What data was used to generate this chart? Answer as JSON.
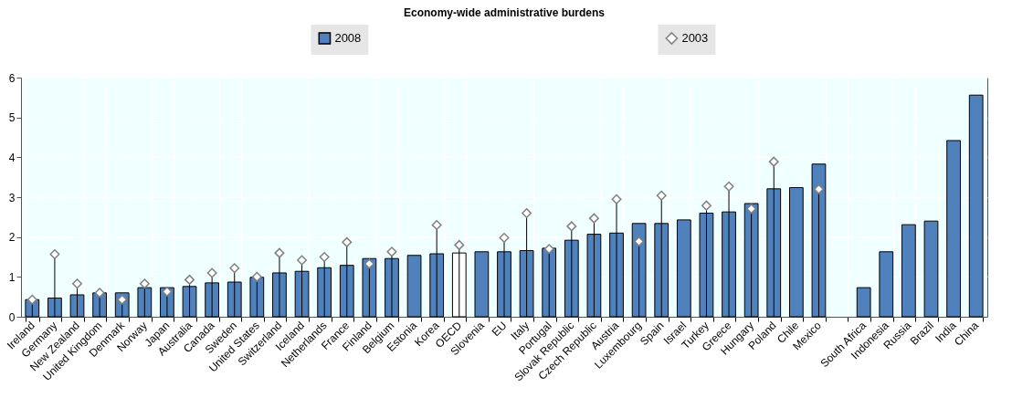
{
  "chart_data": {
    "type": "bar",
    "title": "Economy-wide administrative burdens",
    "categories": [
      "Ireland",
      "Germany",
      "New Zealand",
      "United Kingdom",
      "Denmark",
      "Norway",
      "Japan",
      "Australia",
      "Canada",
      "Sweden",
      "United States",
      "Switzerland",
      "Iceland",
      "Netherlands",
      "France",
      "Finland",
      "Belgium",
      "Estonia",
      "Korea",
      "OECD",
      "Slovenia",
      "EU",
      "Italy",
      "Portugal",
      "Slovak Republic",
      "Czech Republic",
      "Austria",
      "Luxembourg",
      "Spain",
      "Israel",
      "Turkey",
      "Greece",
      "Hungary",
      "Poland",
      "Chile",
      "Mexico",
      null,
      "South Africa",
      "Indonesia",
      "Russia",
      "Brazil",
      "India",
      "China"
    ],
    "series": [
      {
        "name": "2008",
        "color": "#4f81bd",
        "colors": [
          "#4f81bd",
          "#4f81bd",
          "#4f81bd",
          "#4f81bd",
          "#4f81bd",
          "#4f81bd",
          "#4f81bd",
          "#4f81bd",
          "#4f81bd",
          "#4f81bd",
          "#4f81bd",
          "#4f81bd",
          "#4f81bd",
          "#4f81bd",
          "#4f81bd",
          "#4f81bd",
          "#4f81bd",
          "#4f81bd",
          "#4f81bd",
          "#ffffff",
          "#4f81bd",
          "#4f81bd",
          "#4f81bd",
          "#4f81bd",
          "#4f81bd",
          "#4f81bd",
          "#4f81bd",
          "#4f81bd",
          "#4f81bd",
          "#4f81bd",
          "#4f81bd",
          "#4f81bd",
          "#4f81bd",
          "#4f81bd",
          "#4f81bd",
          "#4f81bd",
          "#4f81bd",
          "#4f81bd",
          "#4f81bd",
          "#4f81bd",
          "#4f81bd",
          "#4f81bd",
          "#4f81bd"
        ],
        "values": [
          0.43,
          0.47,
          0.55,
          0.6,
          0.6,
          0.73,
          0.73,
          0.76,
          0.85,
          0.87,
          0.99,
          1.1,
          1.14,
          1.23,
          1.29,
          1.46,
          1.46,
          1.54,
          1.58,
          1.6,
          1.63,
          1.63,
          1.66,
          1.72,
          1.92,
          2.07,
          2.1,
          2.34,
          2.34,
          2.43,
          2.6,
          2.63,
          2.84,
          3.21,
          3.24,
          3.83,
          null,
          0.73,
          1.63,
          2.31,
          2.4,
          4.42,
          5.56
        ]
      },
      {
        "name": "2003",
        "type": "lollipop",
        "marker": "diamond",
        "color": "#ffffff",
        "values": [
          0.43,
          1.57,
          0.83,
          0.6,
          0.43,
          0.83,
          0.63,
          0.93,
          1.1,
          1.22,
          1.0,
          1.6,
          1.42,
          1.5,
          1.87,
          1.33,
          1.63,
          null,
          2.3,
          1.8,
          null,
          1.98,
          2.6,
          1.7,
          2.27,
          2.47,
          2.95,
          1.89,
          3.04,
          null,
          2.79,
          3.27,
          2.71,
          3.89,
          null,
          3.2,
          null,
          null,
          null,
          null,
          null,
          null,
          null
        ]
      }
    ],
    "ylim": [
      0,
      6
    ],
    "yticks": [
      0,
      1,
      2,
      3,
      4,
      5,
      6
    ],
    "grid": true,
    "legend": "top"
  }
}
